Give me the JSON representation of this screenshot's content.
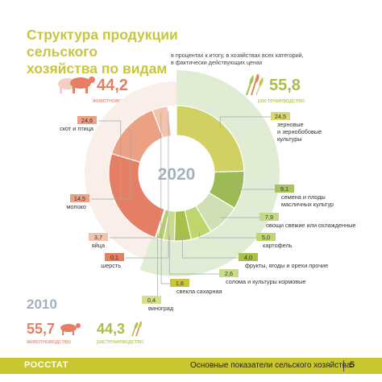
{
  "header": {
    "title_line1": "Структура продукции сельского",
    "title_line2": "хозяйства по видам",
    "subtitle_line1": "в процентах к итогу, в хозяйствах всех категорий,",
    "subtitle_line2": "в фактически действующих ценах"
  },
  "totals_2020": {
    "livestock_value": "44,2",
    "livestock_label": "животноводство",
    "crop_value": "55,8",
    "crop_label": "растениеводство",
    "center_year": "2020"
  },
  "totals_2010": {
    "year": "2010",
    "livestock_value": "55,7",
    "livestock_label": "животноводство",
    "crop_value": "44,3",
    "crop_label": "растениеводство"
  },
  "footer": {
    "brand": "РОССТАТ",
    "text": "Основные показатели сельского хозяйства",
    "page": "5"
  },
  "colors": {
    "livestock_dark": "#e47f66",
    "livestock_light": "#f2cfc0",
    "crop_dark": "#a8bf4a",
    "crop_light": "#cfe0b5",
    "accent": "#c9c53d",
    "year_2010": "#a5b0bd"
  },
  "icons": [
    "cow-icon",
    "wheat-icon"
  ],
  "chart_data": {
    "type": "pie",
    "title": "Структура продукции сельского хозяйства по видам",
    "center_label": "2020",
    "series": [
      {
        "name": "животноводство",
        "total": 44.2,
        "categories": [
          "скот и птица",
          "молоко",
          "яйца",
          "шерсть"
        ],
        "values": [
          24.6,
          14.5,
          3.7,
          0.1
        ],
        "labels": [
          "24,6",
          "14,5",
          "3,7",
          "0,1"
        ]
      },
      {
        "name": "растениеводство",
        "total": 55.8,
        "categories": [
          "зерновые и зернобобовые культуры",
          "семена и плоды масличных культур",
          "овощи свежие или охлажденные",
          "картофель",
          "фрукты, ягоды и орехи прочие",
          "солома и культуры кормовые",
          "свекла сахарная",
          "виноград"
        ],
        "values": [
          24.5,
          9.1,
          7.9,
          5.0,
          4.0,
          2.6,
          1.6,
          0.4
        ],
        "labels": [
          "24,5",
          "9,1",
          "7,9",
          "5,0",
          "4,0",
          "2,6",
          "1,6",
          "0,4"
        ]
      }
    ]
  }
}
